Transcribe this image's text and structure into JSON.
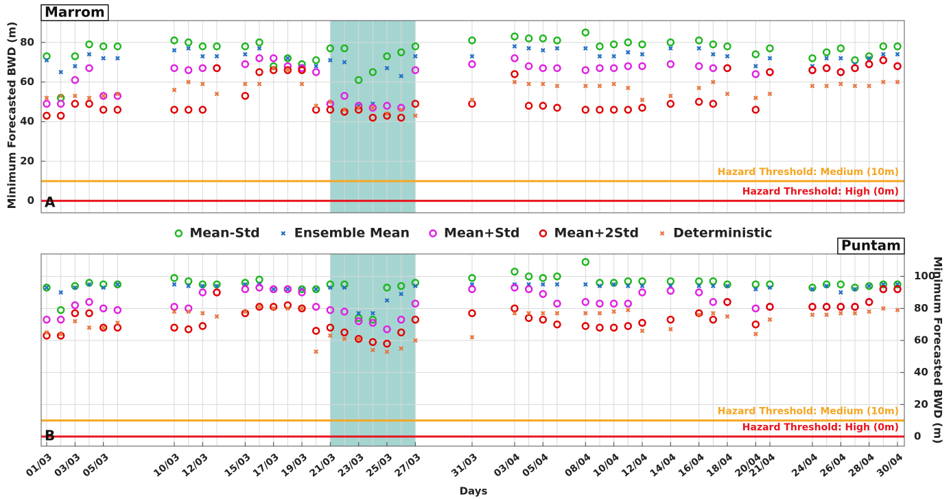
{
  "chart_data": [
    {
      "type": "scatter",
      "title": "Marrom",
      "panel_label": "A",
      "ylabel": "Minimum Forecasted BWD (m)",
      "yaxis": "left",
      "ylim": [
        -6,
        91
      ],
      "yticks": [
        0,
        20,
        40,
        60,
        80
      ],
      "grid": true,
      "legend": "between",
      "xlim": [
        "01/03",
        "30/04"
      ],
      "x": [
        "01/03",
        "02/03",
        "03/03",
        "04/03",
        "05/03",
        "06/03",
        "10/03",
        "11/03",
        "12/03",
        "13/03",
        "15/03",
        "16/03",
        "17/03",
        "18/03",
        "19/03",
        "20/03",
        "21/03",
        "22/03",
        "23/03",
        "24/03",
        "25/03",
        "26/03",
        "27/03",
        "31/03",
        "03/04",
        "04/04",
        "05/04",
        "06/04",
        "08/04",
        "09/04",
        "10/04",
        "11/04",
        "12/04",
        "14/04",
        "16/04",
        "17/04",
        "18/04",
        "20/04",
        "21/04",
        "24/04",
        "25/04",
        "26/04",
        "27/04",
        "28/04",
        "29/04",
        "30/04"
      ],
      "highlight": {
        "start": "21/03",
        "end": "27/03",
        "color": "#8fcac6"
      },
      "thresholds": [
        {
          "label": "Hazard Threshold: Medium (10m)",
          "value": 10,
          "color": "#f5a623"
        },
        {
          "label": "Hazard Threshold: High (0m)",
          "value": 0,
          "color": "#e8141e"
        }
      ],
      "series": [
        {
          "name": "Mean-Std",
          "color": "#1fb51f",
          "marker": "o",
          "values": [
            73,
            52,
            73,
            79,
            78,
            78,
            81,
            80,
            78,
            78,
            78,
            80,
            68,
            72,
            69,
            71,
            77,
            77,
            61,
            65,
            73,
            75,
            78,
            81,
            83,
            82,
            82,
            81,
            85,
            78,
            79,
            80,
            79,
            80,
            81,
            79,
            78,
            74,
            77,
            72,
            75,
            77,
            71,
            73,
            78,
            78
          ]
        },
        {
          "name": "Ensemble Mean",
          "color": "#1f6fc5",
          "marker": "x",
          "values": [
            71,
            65,
            68,
            74,
            72,
            72,
            76,
            77,
            73,
            73,
            74,
            77,
            67,
            72,
            68,
            68,
            71,
            70,
            48,
            49,
            67,
            63,
            73,
            73,
            78,
            77,
            76,
            77,
            77,
            73,
            73,
            75,
            74,
            77,
            77,
            74,
            73,
            68,
            72,
            68,
            72,
            72,
            69,
            72,
            74,
            74
          ]
        },
        {
          "name": "Mean+Std",
          "color": "#e020e0",
          "marker": "o",
          "values": [
            49,
            49,
            61,
            67,
            53,
            53,
            67,
            66,
            67,
            67,
            69,
            72,
            72,
            68,
            67,
            65,
            49,
            53,
            48,
            47,
            48,
            47,
            66,
            69,
            72,
            68,
            67,
            67,
            66,
            67,
            67,
            68,
            68,
            69,
            68,
            67,
            67,
            64,
            65,
            66,
            67,
            65,
            67,
            69,
            71,
            68
          ]
        },
        {
          "name": "Mean+2Std",
          "color": "#e00000",
          "marker": "o",
          "values": [
            43,
            43,
            49,
            49,
            46,
            46,
            46,
            46,
            46,
            67,
            53,
            65,
            66,
            66,
            66,
            46,
            46,
            45,
            46,
            42,
            43,
            42,
            49,
            49,
            64,
            48,
            48,
            47,
            46,
            46,
            46,
            46,
            47,
            49,
            50,
            49,
            67,
            46,
            65,
            66,
            67,
            65,
            67,
            69,
            71,
            68
          ]
        },
        {
          "name": "Deterministic",
          "color": "#e8743b",
          "marker": "x",
          "values": [
            52,
            53,
            53,
            52,
            53,
            54,
            56,
            60,
            59,
            54,
            59,
            59,
            67,
            66,
            59,
            48,
            50,
            46,
            47,
            47,
            44,
            46,
            43,
            51,
            60,
            59,
            59,
            58,
            58,
            58,
            59,
            57,
            51,
            53,
            57,
            60,
            54,
            52,
            54,
            58,
            58,
            59,
            58,
            58,
            60,
            60
          ]
        }
      ]
    },
    {
      "type": "scatter",
      "title": "Puntam",
      "panel_label": "B",
      "ylabel": "Minimum Forecasted BWD (m)",
      "yaxis": "right",
      "ylim": [
        -6,
        114
      ],
      "yticks": [
        0,
        20,
        40,
        60,
        80,
        100
      ],
      "grid": true,
      "xlabel": "Days",
      "xlim": [
        "01/03",
        "30/04"
      ],
      "x": [
        "01/03",
        "02/03",
        "03/03",
        "04/03",
        "05/03",
        "06/03",
        "10/03",
        "11/03",
        "12/03",
        "13/03",
        "15/03",
        "16/03",
        "17/03",
        "18/03",
        "19/03",
        "20/03",
        "21/03",
        "22/03",
        "23/03",
        "24/03",
        "25/03",
        "26/03",
        "27/03",
        "31/03",
        "03/04",
        "04/04",
        "05/04",
        "06/04",
        "08/04",
        "09/04",
        "10/04",
        "11/04",
        "12/04",
        "14/04",
        "16/04",
        "17/04",
        "18/04",
        "20/04",
        "21/04",
        "24/04",
        "25/04",
        "26/04",
        "27/04",
        "28/04",
        "29/04",
        "30/04"
      ],
      "xticks": [
        "01/03",
        "03/03",
        "05/03",
        "10/03",
        "12/03",
        "15/03",
        "17/03",
        "19/03",
        "21/03",
        "23/03",
        "25/03",
        "27/03",
        "31/03",
        "03/04",
        "05/04",
        "08/04",
        "10/04",
        "12/04",
        "14/04",
        "16/04",
        "18/04",
        "20/04",
        "21/04",
        "24/04",
        "26/04",
        "28/04",
        "30/04"
      ],
      "highlight": {
        "start": "21/03",
        "end": "27/03",
        "color": "#8fcac6"
      },
      "thresholds": [
        {
          "label": "Hazard Threshold: Medium (10m)",
          "value": 10,
          "color": "#f5a623"
        },
        {
          "label": "Hazard Threshold: High (0m)",
          "value": 0,
          "color": "#e8141e"
        }
      ],
      "series": [
        {
          "color": "#1fb51f",
          "marker": "o",
          "values": [
            93,
            79,
            94,
            96,
            95,
            95,
            99,
            97,
            95,
            95,
            96,
            98,
            92,
            92,
            92,
            92,
            95,
            95,
            74,
            73,
            93,
            94,
            96,
            99,
            103,
            100,
            99,
            100,
            109,
            96,
            96,
            97,
            97,
            97,
            97,
            97,
            95,
            95,
            95,
            93,
            95,
            95,
            93,
            94,
            95,
            95
          ]
        },
        {
          "color": "#1f6fc5",
          "marker": "x",
          "values": [
            93,
            90,
            93,
            95,
            93,
            95,
            95,
            94,
            94,
            94,
            95,
            95,
            92,
            92,
            92,
            92,
            93,
            93,
            77,
            77,
            85,
            89,
            94,
            95,
            95,
            95,
            95,
            95,
            95,
            94,
            95,
            94,
            94,
            94,
            94,
            94,
            94,
            92,
            93,
            92,
            94,
            90,
            92,
            94,
            95,
            95
          ]
        },
        {
          "color": "#e020e0",
          "marker": "o",
          "values": [
            73,
            73,
            82,
            84,
            80,
            79,
            81,
            80,
            90,
            90,
            92,
            93,
            92,
            92,
            90,
            81,
            79,
            78,
            72,
            71,
            67,
            73,
            83,
            92,
            93,
            92,
            89,
            83,
            84,
            83,
            83,
            83,
            90,
            91,
            90,
            84,
            84,
            80,
            81,
            81,
            81,
            81,
            81,
            84,
            92,
            92
          ]
        },
        {
          "color": "#e00000",
          "marker": "o",
          "values": [
            63,
            63,
            77,
            77,
            68,
            68,
            68,
            67,
            69,
            90,
            77,
            81,
            81,
            82,
            80,
            66,
            68,
            65,
            61,
            59,
            58,
            65,
            73,
            77,
            80,
            74,
            73,
            70,
            69,
            68,
            68,
            69,
            71,
            73,
            77,
            73,
            84,
            70,
            81,
            81,
            81,
            81,
            81,
            84,
            92,
            92
          ]
        },
        {
          "color": "#e8743b",
          "marker": "x",
          "values": [
            65,
            64,
            72,
            68,
            68,
            71,
            78,
            78,
            77,
            75,
            78,
            81,
            80,
            80,
            80,
            53,
            63,
            61,
            61,
            54,
            53,
            55,
            60,
            62,
            77,
            77,
            77,
            77,
            77,
            77,
            78,
            79,
            66,
            67,
            76,
            77,
            75,
            64,
            73,
            76,
            76,
            77,
            77,
            78,
            80,
            79
          ]
        }
      ]
    }
  ]
}
